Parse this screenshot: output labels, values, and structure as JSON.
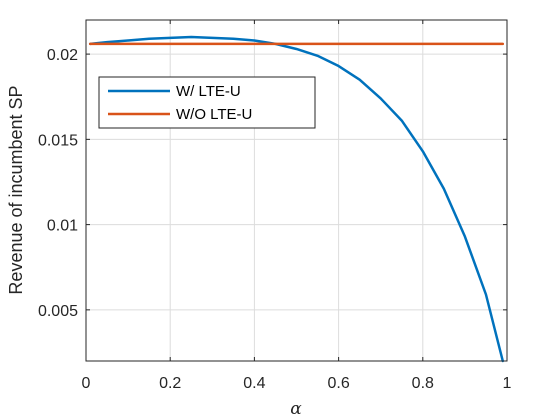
{
  "chart_data": {
    "type": "line",
    "xlabel": "α",
    "ylabel": "Revenue of incumbent SP",
    "xlim": [
      0,
      1
    ],
    "ylim": [
      0.002,
      0.022
    ],
    "x_ticks": [
      0,
      0.2,
      0.4,
      0.6,
      0.8,
      1
    ],
    "x_tick_labels": [
      "0",
      "0.2",
      "0.4",
      "0.6",
      "0.8",
      "1"
    ],
    "y_ticks": [
      0.005,
      0.01,
      0.015,
      0.02
    ],
    "y_tick_labels": [
      "0.005",
      "0.01",
      "0.015",
      "0.02"
    ],
    "grid": true,
    "legend_position": "upper-left",
    "series": [
      {
        "name": "W/ LTE-U",
        "color": "#0072BD",
        "x": [
          0.01,
          0.05,
          0.1,
          0.15,
          0.2,
          0.25,
          0.3,
          0.35,
          0.4,
          0.45,
          0.5,
          0.55,
          0.6,
          0.65,
          0.7,
          0.75,
          0.8,
          0.85,
          0.9,
          0.95,
          0.99
        ],
        "y": [
          0.0206,
          0.0207,
          0.0208,
          0.0209,
          0.02095,
          0.021,
          0.02095,
          0.0209,
          0.0208,
          0.0206,
          0.0203,
          0.0199,
          0.0193,
          0.0185,
          0.0174,
          0.0161,
          0.0143,
          0.0121,
          0.0093,
          0.0059,
          0.002
        ]
      },
      {
        "name": "W/O LTE-U",
        "color": "#D95319",
        "x": [
          0.01,
          0.99
        ],
        "y": [
          0.0206,
          0.0206
        ]
      }
    ]
  }
}
